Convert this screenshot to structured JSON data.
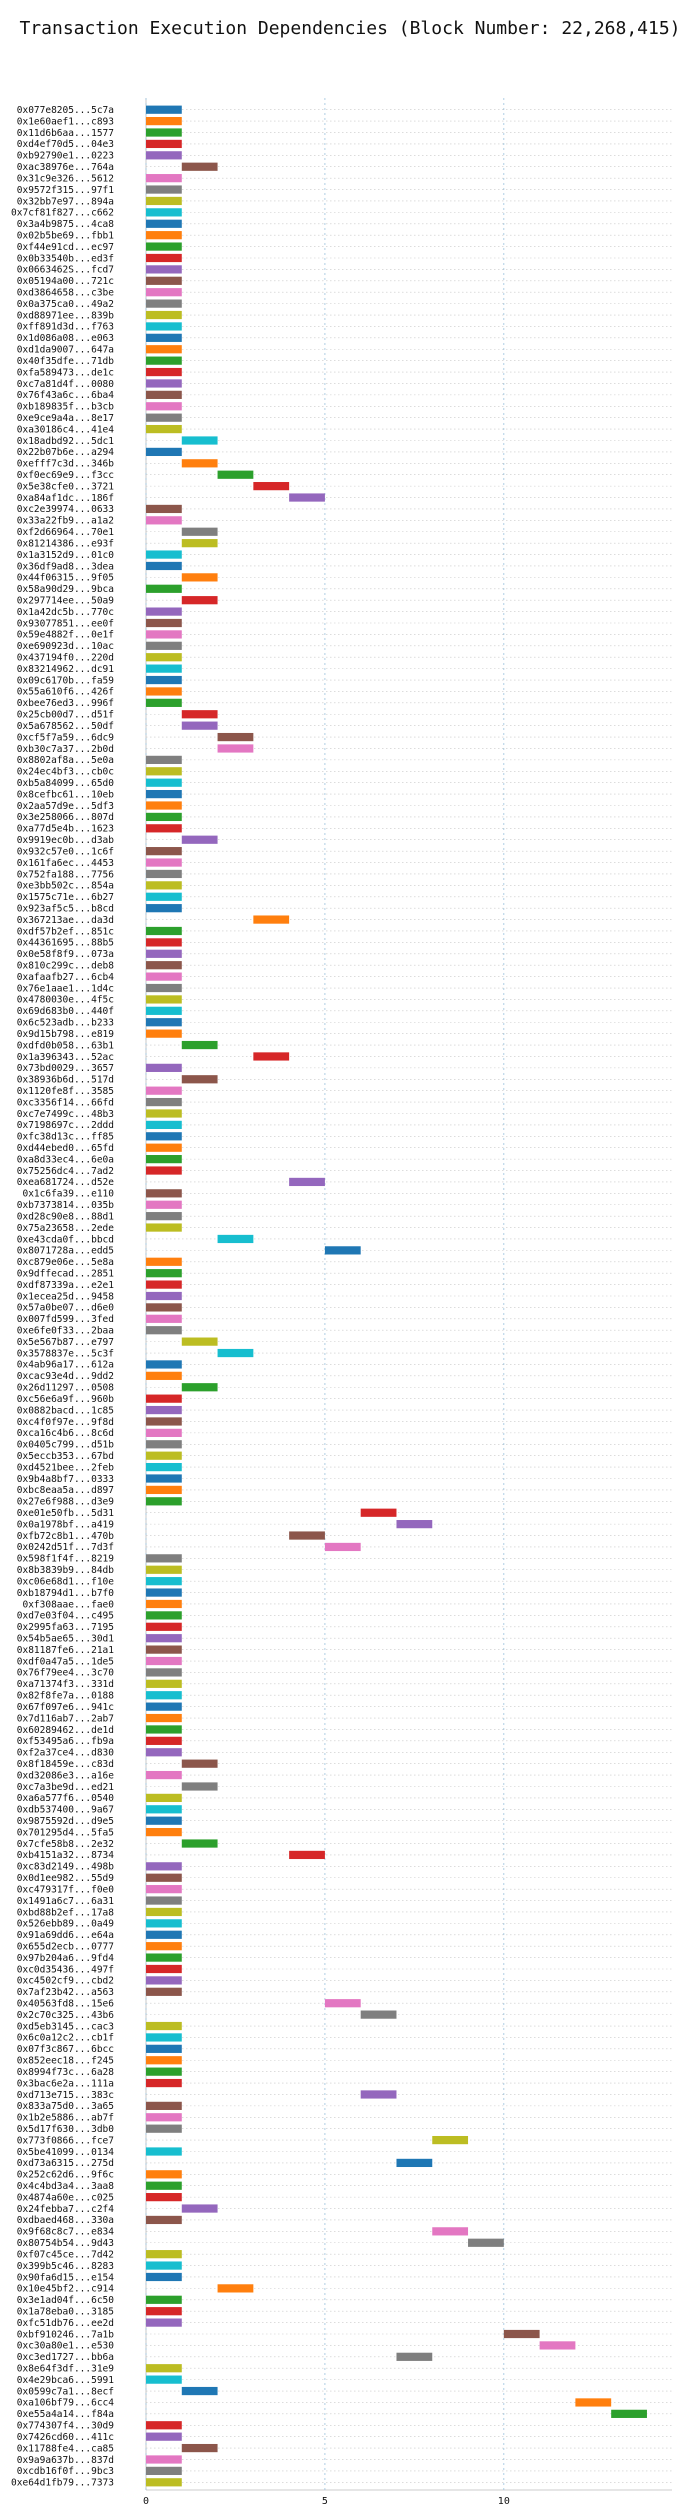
{
  "chart_data": {
    "type": "bar",
    "orientation": "horizontal",
    "title": "Transaction Execution Dependencies (Block Number: 22,268,415)",
    "xlabel": "",
    "ylabel": "",
    "x_ticks": [
      0,
      5,
      10
    ],
    "xlim": [
      0,
      14.7
    ],
    "grid": "vertical dotted at x ticks; horizontal dotted per row",
    "palette": [
      "#1f77b4",
      "#ff7f0e",
      "#2ca02c",
      "#d62728",
      "#9467bd",
      "#8c564b",
      "#e377c2",
      "#7f7f7f",
      "#bcbd22",
      "#17becf"
    ],
    "bar_width": 1,
    "transactions": [
      [
        "0x077e8205...5c7a",
        0
      ],
      [
        "0x1e60aef1...c893",
        0
      ],
      [
        "0x11d6b6aa...1577",
        0
      ],
      [
        "0xd4ef70d5...04e3",
        0
      ],
      [
        "0xb92790e1...0223",
        0
      ],
      [
        "0xac38976e...764a",
        1
      ],
      [
        "0x31c9e326...5612",
        0
      ],
      [
        "0x9572f315...97f1",
        0
      ],
      [
        "0x32bb7e97...894a",
        0
      ],
      [
        "0x7cf81f827...c662",
        0
      ],
      [
        "0x3a4b9875...4ca8",
        0
      ],
      [
        "0x02b5be69...fbb1",
        0
      ],
      [
        "0xf44e91cd...ec97",
        0
      ],
      [
        "0x0b33540b...ed3f",
        0
      ],
      [
        "0x0663462S...fcd7",
        0
      ],
      [
        "0x05194a00...721c",
        0
      ],
      [
        "0xd3864658...c3be",
        0
      ],
      [
        "0x0a375ca0...49a2",
        0
      ],
      [
        "0xd88971ee...839b",
        0
      ],
      [
        "0xff891d3d...f763",
        0
      ],
      [
        "0x1d086a08...e063",
        0
      ],
      [
        "0xd1da9007...647a",
        0
      ],
      [
        "0x40f35dfe...71db",
        0
      ],
      [
        "0xfa589473...de1c",
        0
      ],
      [
        "0xc7a81d4f...0080",
        0
      ],
      [
        "0x76f43a6c...6ba4",
        0
      ],
      [
        "0xb189835f...b3cb",
        0
      ],
      [
        "0xe9ce9a4a...8e17",
        0
      ],
      [
        "0xa30186c4...41e4",
        0
      ],
      [
        "0x18adbd92...5dc1",
        1
      ],
      [
        "0x22b07b6e...a294",
        0
      ],
      [
        "0xefff7c3d...346b",
        1
      ],
      [
        "0xf0ec69e9...f3cc",
        2
      ],
      [
        "0x5e38cfe0...3721",
        3
      ],
      [
        "0xa84af1dc...186f",
        4
      ],
      [
        "0xc2e39974...0633",
        0
      ],
      [
        "0x33a22fb9...a1a2",
        0
      ],
      [
        "0xf2d66964...70e1",
        1
      ],
      [
        "0x81214386...e93f",
        1
      ],
      [
        "0x1a3152d9...01c0",
        0
      ],
      [
        "0x36df9ad8...3dea",
        0
      ],
      [
        "0x44f06315...9f05",
        1
      ],
      [
        "0x58a90d29...9bca",
        0
      ],
      [
        "0x297714ee...50a9",
        1
      ],
      [
        "0x1a42dc5b...770c",
        0
      ],
      [
        "0x93077851...ee0f",
        0
      ],
      [
        "0x59e4882f...0e1f",
        0
      ],
      [
        "0xe690923d...10ac",
        0
      ],
      [
        "0x437194f0...220d",
        0
      ],
      [
        "0x83214962...dc91",
        0
      ],
      [
        "0x09c6170b...fa59",
        0
      ],
      [
        "0x55a610f6...426f",
        0
      ],
      [
        "0xbee76ed3...996f",
        0
      ],
      [
        "0x25cb00d7...d51f",
        1
      ],
      [
        "0x5a678562...50df",
        1
      ],
      [
        "0xcf5f7a59...6dc9",
        2
      ],
      [
        "0xb30c7a37...2b0d",
        2
      ],
      [
        "0x8802af8a...5e0a",
        0
      ],
      [
        "0x24ec4bf3...cb0c",
        0
      ],
      [
        "0xb5a84099...65d0",
        0
      ],
      [
        "0x8cefbc61...10eb",
        0
      ],
      [
        "0x2aa57d9e...5df3",
        0
      ],
      [
        "0x3e258066...807d",
        0
      ],
      [
        "0xa77d5e4b...1623",
        0
      ],
      [
        "0x9919ec0b...d3ab",
        1
      ],
      [
        "0x932c57e0...1c6f",
        0
      ],
      [
        "0x161fa6ec...4453",
        0
      ],
      [
        "0x752fa188...7756",
        0
      ],
      [
        "0xe3bb502c...854a",
        0
      ],
      [
        "0x1575c71e...6b27",
        0
      ],
      [
        "0x923af5c5...b8cd",
        0
      ],
      [
        "0x367213ae...da3d",
        3
      ],
      [
        "0xdf57b2ef...851c",
        0
      ],
      [
        "0x44361695...88b5",
        0
      ],
      [
        "0x0e58f8f9...073a",
        0
      ],
      [
        "0x810c299c...deb8",
        0
      ],
      [
        "0xafaafb27...6cb4",
        0
      ],
      [
        "0x76e1aae1...1d4c",
        0
      ],
      [
        "0x4780030e...4f5c",
        0
      ],
      [
        "0x69d683b0...440f",
        0
      ],
      [
        "0x6c523adb...b233",
        0
      ],
      [
        "0x9d15b798...e819",
        0
      ],
      [
        "0xdfd0b058...63b1",
        1
      ],
      [
        "0x1a396343...52ac",
        3
      ],
      [
        "0x73bd0029...3657",
        0
      ],
      [
        "0x38936b6d...517d",
        1
      ],
      [
        "0x1120fe8f...3585",
        0
      ],
      [
        "0xc3356f14...66fd",
        0
      ],
      [
        "0xc7e7499c...48b3",
        0
      ],
      [
        "0x7198697c...2ddd",
        0
      ],
      [
        "0xfc38d13c...ff85",
        0
      ],
      [
        "0xd44ebed0...65fd",
        0
      ],
      [
        "0xa8d33ec4...6e0a",
        0
      ],
      [
        "0x75256dc4...7ad2",
        0
      ],
      [
        "0xea681724...d52e",
        4
      ],
      [
        "0x1c6fa39...e110",
        0
      ],
      [
        "0xb7373814...035b",
        0
      ],
      [
        "0xd28c90e8...88d1",
        0
      ],
      [
        "0x75a23658...2ede",
        0
      ],
      [
        "0xe43cda0f...bbcd",
        2
      ],
      [
        "0x8071728a...edd5",
        5
      ],
      [
        "0xc879e06e...5e8a",
        0
      ],
      [
        "0x9dffecad...2851",
        0
      ],
      [
        "0xdf87339a...e2e1",
        0
      ],
      [
        "0x1ecea25d...9458",
        0
      ],
      [
        "0x57a0be07...d6e0",
        0
      ],
      [
        "0x007fd599...3fed",
        0
      ],
      [
        "0xe6fe0f33...2baa",
        0
      ],
      [
        "0x5e567b87...e797",
        1
      ],
      [
        "0x3578837e...5c3f",
        2
      ],
      [
        "0x4ab96a17...612a",
        0
      ],
      [
        "0xcac93e4d...9dd2",
        0
      ],
      [
        "0x26d11297...0508",
        1
      ],
      [
        "0xc56e6a9f...960b",
        0
      ],
      [
        "0x0882bacd...1c85",
        0
      ],
      [
        "0xc4f0f97e...9f8d",
        0
      ],
      [
        "0xca16c4b6...8c6d",
        0
      ],
      [
        "0x0405c799...d51b",
        0
      ],
      [
        "0x5eccb353...67bd",
        0
      ],
      [
        "0xd4521bee...2feb",
        0
      ],
      [
        "0x9b4a8bf7...0333",
        0
      ],
      [
        "0xbc8eaa5a...d897",
        0
      ],
      [
        "0x27e6f988...d3e9",
        0
      ],
      [
        "0xe01e50fb...5d31",
        6
      ],
      [
        "0x0a1978bf...a419",
        7
      ],
      [
        "0xfb72c8b1...470b",
        4
      ],
      [
        "0x0242d51f...7d3f",
        5
      ],
      [
        "0x598f1f4f...8219",
        0
      ],
      [
        "0x8b3839b9...84db",
        0
      ],
      [
        "0xc06e68d1...f10e",
        0
      ],
      [
        "0xb18794d1...b7f0",
        0
      ],
      [
        "0xf308aae...fae0",
        0
      ],
      [
        "0xd7e03f04...c495",
        0
      ],
      [
        "0x2995fa63...7195",
        0
      ],
      [
        "0x54b5ae65...30d1",
        0
      ],
      [
        "0x81187fe6...21a1",
        0
      ],
      [
        "0xdf0a47a5...1de5",
        0
      ],
      [
        "0x76f79ee4...3c70",
        0
      ],
      [
        "0xa71374f3...331d",
        0
      ],
      [
        "0x82f8fe7a...0188",
        0
      ],
      [
        "0x67f097e6...941c",
        0
      ],
      [
        "0x7d116ab7...2ab7",
        0
      ],
      [
        "0x60289462...de1d",
        0
      ],
      [
        "0xf53495a6...fb9a",
        0
      ],
      [
        "0xf2a37ce4...d830",
        0
      ],
      [
        "0x8f18459e...c83d",
        1
      ],
      [
        "0xd32086e3...a16e",
        0
      ],
      [
        "0xc7a3be9d...ed21",
        1
      ],
      [
        "0xa6a577f6...0540",
        0
      ],
      [
        "0xdb537400...9a67",
        0
      ],
      [
        "0x9875592d...d9e5",
        0
      ],
      [
        "0x701295d4...5fa5",
        0
      ],
      [
        "0x7cfe58b8...2e32",
        1
      ],
      [
        "0xb4151a32...8734",
        4
      ],
      [
        "0xc83d2149...498b",
        0
      ],
      [
        "0x0d1ee982...55d9",
        0
      ],
      [
        "0xc479317f...f0e0",
        0
      ],
      [
        "0x1491a6c7...6a31",
        0
      ],
      [
        "0xbd88b2ef...17a8",
        0
      ],
      [
        "0x526ebb89...0a49",
        0
      ],
      [
        "0x91a69dd6...e64a",
        0
      ],
      [
        "0x655d2ecb...0777",
        0
      ],
      [
        "0x97b204a6...9fd4",
        0
      ],
      [
        "0xc0d35436...497f",
        0
      ],
      [
        "0xc4502cf9...cbd2",
        0
      ],
      [
        "0x7af23b42...a563",
        0
      ],
      [
        "0x40563fd8...15e6",
        5
      ],
      [
        "0x2c70c325...43b6",
        6
      ],
      [
        "0xd5eb3145...cac3",
        0
      ],
      [
        "0x6c0a12c2...cb1f",
        0
      ],
      [
        "0x07f3c867...6bcc",
        0
      ],
      [
        "0x852eec18...f245",
        0
      ],
      [
        "0x8994f73c...6a28",
        0
      ],
      [
        "0x3bac6e2a...111a",
        0
      ],
      [
        "0xd713e715...383c",
        6
      ],
      [
        "0x833a75d0...3a65",
        0
      ],
      [
        "0x1b2e5886...ab7f",
        0
      ],
      [
        "0x5d17f630...3db0",
        0
      ],
      [
        "0x773f0866...fce7",
        8
      ],
      [
        "0x5be41099...0134",
        0
      ],
      [
        "0xd73a6315...275d",
        7
      ],
      [
        "0x252c62d6...9f6c",
        0
      ],
      [
        "0x4c4bd3a4...3aa8",
        0
      ],
      [
        "0x4874a60e...c025",
        0
      ],
      [
        "0x24febba7...c2f4",
        1
      ],
      [
        "0xdbaed468...330a",
        0
      ],
      [
        "0x9f68c8c7...e834",
        8
      ],
      [
        "0x80754b54...9d43",
        9
      ],
      [
        "0xf07c45ce...7d42",
        0
      ],
      [
        "0x399b5c46...8283",
        0
      ],
      [
        "0x90fa6d15...e154",
        0
      ],
      [
        "0x10e45bf2...c914",
        2
      ],
      [
        "0x3e1ad04f...6c50",
        0
      ],
      [
        "0x1a78eba0...3185",
        0
      ],
      [
        "0xfc51db76...ee2d",
        0
      ],
      [
        "0xbf910246...7a1b",
        10
      ],
      [
        "0xc30a80e1...e530",
        11
      ],
      [
        "0xc3ed1727...bb6a",
        7
      ],
      [
        "0x8e64f3df...31e9",
        0
      ],
      [
        "0x4e29bca6...5991",
        0
      ],
      [
        "0x0599c7a1...8ecf",
        1
      ],
      [
        "0xa106bf79...6cc4",
        12
      ],
      [
        "0xe55a4a14...f84a",
        13
      ],
      [
        "0x774307f4...30d9",
        0
      ],
      [
        "0x7426cd60...411c",
        0
      ],
      [
        "0x11788fe4...ca85",
        1
      ],
      [
        "0x9a9a637b...837d",
        0
      ],
      [
        "0xcdb16f0f...9bc3",
        0
      ],
      [
        "0xe64d1fb79...7373",
        0
      ]
    ]
  }
}
